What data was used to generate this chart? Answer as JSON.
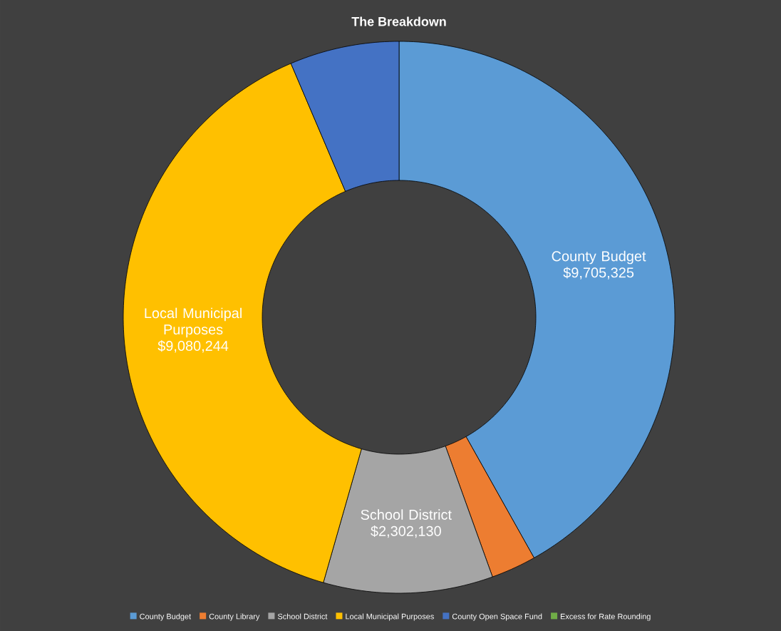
{
  "chart_data": {
    "type": "donut",
    "title": "The Breakdown",
    "categories": [
      "County Budget",
      "County Library",
      "School District",
      "Local Municipal Purposes",
      "County Open Space Fund",
      "Excess for Rate Rounding"
    ],
    "values": [
      9705325,
      612000,
      2302130,
      9080244,
      1487000,
      0
    ],
    "value_labels": [
      "$9,705,325",
      null,
      "$2,302,130",
      "$9,080,244",
      null,
      null
    ],
    "colors": [
      "#5b9bd5",
      "#ed7d31",
      "#a5a5a5",
      "#ffc000",
      "#4472c4",
      "#70ad47"
    ],
    "legend": "bottom"
  }
}
